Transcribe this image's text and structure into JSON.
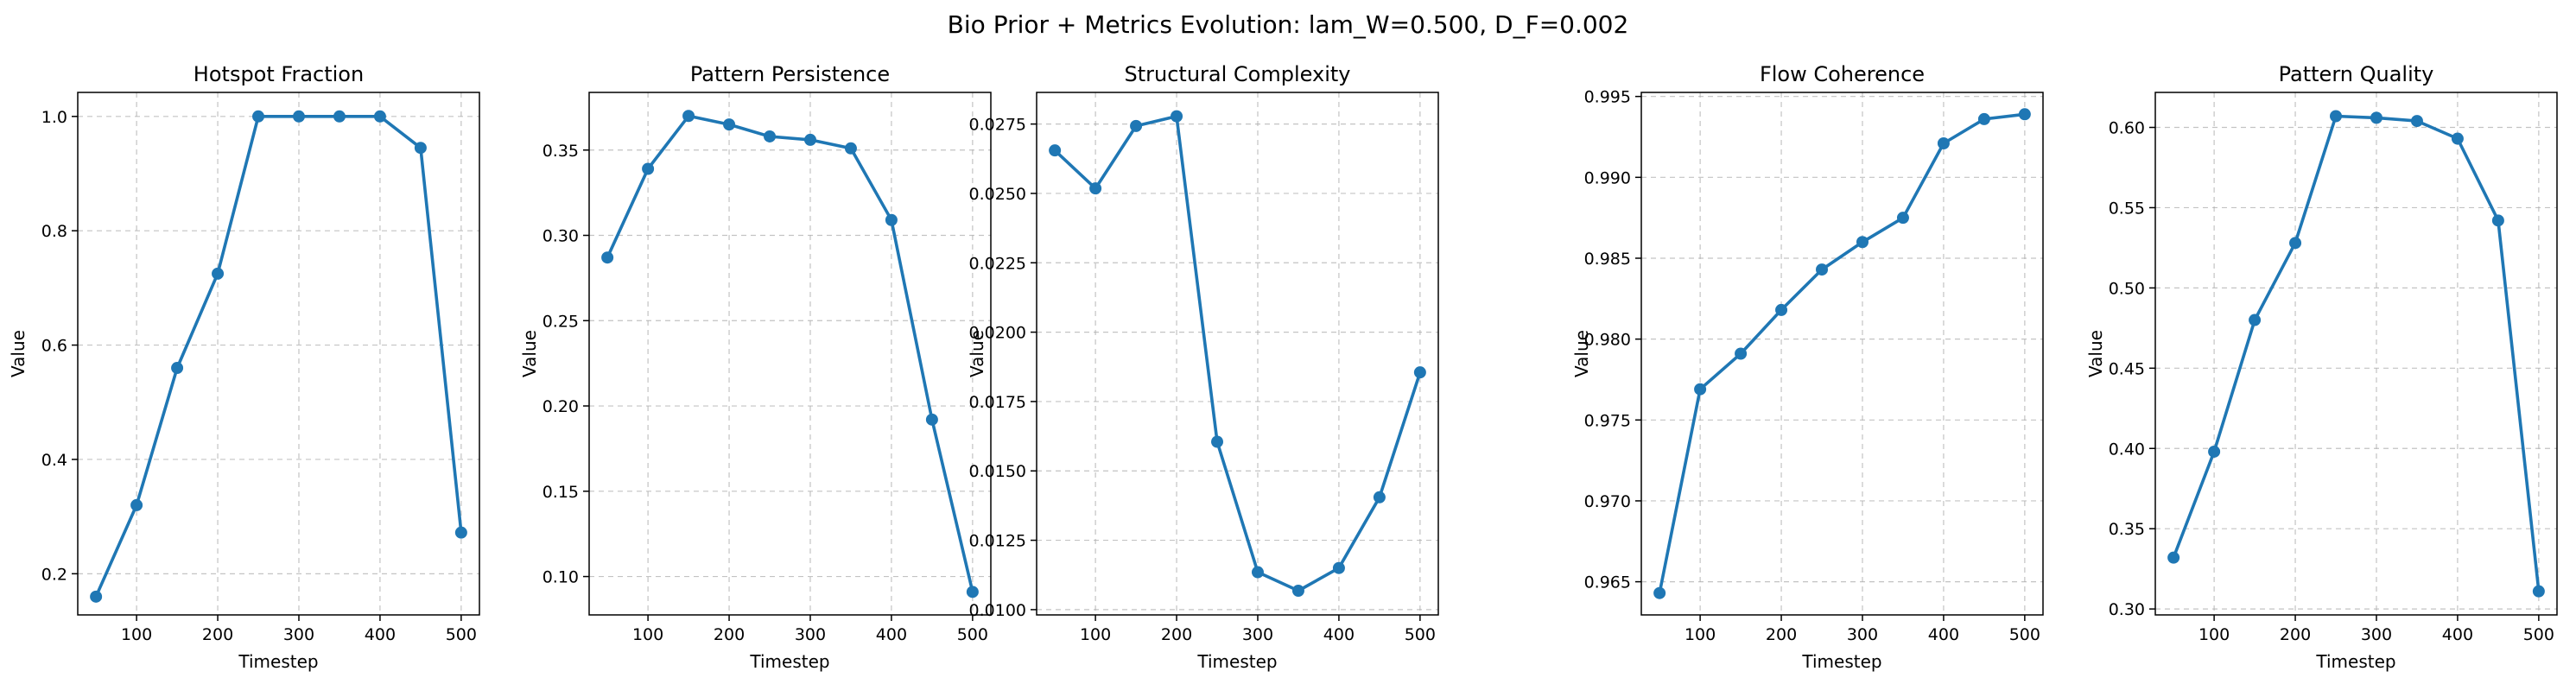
{
  "figure": {
    "suptitle": "Bio Prior + Metrics Evolution: lam_W=0.500, D_F=0.002",
    "line_color": "#1f77b4",
    "grid_color": "#b0b0b0"
  },
  "chart_data": [
    {
      "type": "line",
      "title": "Hotspot Fraction",
      "xlabel": "Timestep",
      "ylabel": "Value",
      "x": [
        50,
        100,
        150,
        200,
        250,
        300,
        350,
        400,
        450,
        500
      ],
      "y": [
        0.16,
        0.32,
        0.56,
        0.725,
        1.0,
        1.0,
        1.0,
        1.0,
        0.945,
        0.272
      ],
      "xlim": [
        27.5,
        522.5
      ],
      "ylim": [
        0.128,
        1.042
      ],
      "xticks": [
        100,
        200,
        300,
        400,
        500
      ],
      "yticks": [
        0.2,
        0.4,
        0.6,
        0.8,
        1.0
      ],
      "ytick_labels": [
        "0.2",
        "0.4",
        "0.6",
        "0.8",
        "1.0"
      ],
      "grid": true
    },
    {
      "type": "line",
      "title": "Pattern Persistence",
      "xlabel": "Timestep",
      "ylabel": "Value",
      "x": [
        50,
        100,
        150,
        200,
        250,
        300,
        350,
        400,
        450,
        500
      ],
      "y": [
        0.287,
        0.339,
        0.37,
        0.365,
        0.358,
        0.356,
        0.351,
        0.309,
        0.192,
        0.091
      ],
      "xlim": [
        27.5,
        522.5
      ],
      "ylim": [
        0.0775,
        0.3838
      ],
      "xticks": [
        100,
        200,
        300,
        400,
        500
      ],
      "yticks": [
        0.1,
        0.15,
        0.2,
        0.25,
        0.3,
        0.35
      ],
      "ytick_labels": [
        "0.10",
        "0.15",
        "0.20",
        "0.25",
        "0.30",
        "0.35"
      ],
      "grid": true
    },
    {
      "type": "line",
      "title": "Structural Complexity",
      "xlabel": "Timestep",
      "ylabel": "Value",
      "x": [
        50,
        100,
        150,
        200,
        250,
        300,
        350,
        400,
        450,
        500
      ],
      "y": [
        0.02655,
        0.02518,
        0.02743,
        0.02778,
        0.01605,
        0.01135,
        0.01068,
        0.0115,
        0.01405,
        0.01855
      ],
      "xlim": [
        27.5,
        522.5
      ],
      "ylim": [
        0.00981,
        0.02864
      ],
      "xticks": [
        100,
        200,
        300,
        400,
        500
      ],
      "yticks": [
        0.01,
        0.0125,
        0.015,
        0.0175,
        0.02,
        0.0225,
        0.025,
        0.0275
      ],
      "ytick_labels": [
        "0.0100",
        "0.0125",
        "0.0150",
        "0.0175",
        "0.0200",
        "0.0225",
        "0.0250",
        "0.0275"
      ],
      "grid": true
    },
    {
      "type": "line",
      "title": "Flow Coherence",
      "xlabel": "Timestep",
      "ylabel": "Value",
      "x": [
        50,
        100,
        150,
        200,
        250,
        300,
        350,
        400,
        450,
        500
      ],
      "y": [
        0.9643,
        0.9769,
        0.9791,
        0.9818,
        0.9843,
        0.986,
        0.9875,
        0.9921,
        0.9936,
        0.9939
      ],
      "xlim": [
        27.5,
        522.5
      ],
      "ylim": [
        0.96295,
        0.99525
      ],
      "xticks": [
        100,
        200,
        300,
        400,
        500
      ],
      "yticks": [
        0.965,
        0.97,
        0.975,
        0.98,
        0.985,
        0.99,
        0.995
      ],
      "ytick_labels": [
        "0.965",
        "0.970",
        "0.975",
        "0.980",
        "0.985",
        "0.990",
        "0.995"
      ],
      "grid": true
    },
    {
      "type": "line",
      "title": "Pattern Quality",
      "xlabel": "Timestep",
      "ylabel": "Value",
      "x": [
        50,
        100,
        150,
        200,
        250,
        300,
        350,
        400,
        450,
        500
      ],
      "y": [
        0.332,
        0.398,
        0.48,
        0.528,
        0.607,
        0.606,
        0.604,
        0.593,
        0.542,
        0.311
      ],
      "xlim": [
        27.5,
        522.5
      ],
      "ylim": [
        0.2963,
        0.6218
      ],
      "xticks": [
        100,
        200,
        300,
        400,
        500
      ],
      "yticks": [
        0.3,
        0.35,
        0.4,
        0.45,
        0.5,
        0.55,
        0.6
      ],
      "ytick_labels": [
        "0.30",
        "0.35",
        "0.40",
        "0.45",
        "0.50",
        "0.55",
        "0.60"
      ],
      "grid": true
    }
  ]
}
